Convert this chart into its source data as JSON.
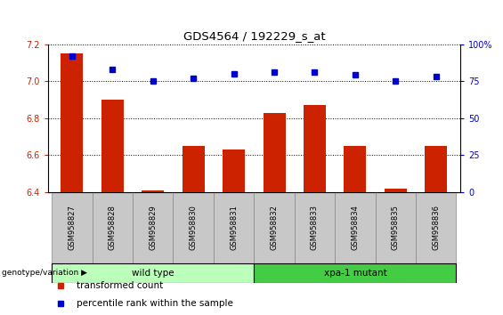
{
  "title": "GDS4564 / 192229_s_at",
  "samples": [
    "GSM958827",
    "GSM958828",
    "GSM958829",
    "GSM958830",
    "GSM958831",
    "GSM958832",
    "GSM958833",
    "GSM958834",
    "GSM958835",
    "GSM958836"
  ],
  "transformed_count": [
    7.15,
    6.9,
    6.41,
    6.65,
    6.63,
    6.83,
    6.87,
    6.65,
    6.42,
    6.65
  ],
  "percentile_rank": [
    92,
    83,
    75,
    77,
    80,
    81,
    81,
    79,
    75,
    78
  ],
  "bar_color": "#cc2200",
  "dot_color": "#0000cc",
  "ylim_left": [
    6.4,
    7.2
  ],
  "ylim_right": [
    0,
    100
  ],
  "yticks_left": [
    6.4,
    6.6,
    6.8,
    7.0,
    7.2
  ],
  "yticks_right": [
    0,
    25,
    50,
    75,
    100
  ],
  "ytick_labels_right": [
    "0",
    "25",
    "50",
    "75",
    "100%"
  ],
  "groups": [
    {
      "label": "wild type",
      "start": 0,
      "end": 4,
      "color": "#bbffbb"
    },
    {
      "label": "xpa-1 mutant",
      "start": 5,
      "end": 9,
      "color": "#44cc44"
    }
  ],
  "genotype_label": "genotype/variation",
  "legend_items": [
    {
      "label": "transformed count",
      "color": "#cc2200"
    },
    {
      "label": "percentile rank within the sample",
      "color": "#0000cc"
    }
  ],
  "bar_width": 0.55,
  "background_color": "#ffffff",
  "tick_color_left": "#cc2200",
  "tick_color_right": "#0000cc",
  "sample_box_color": "#c8c8c8",
  "sample_box_edge": "#888888"
}
